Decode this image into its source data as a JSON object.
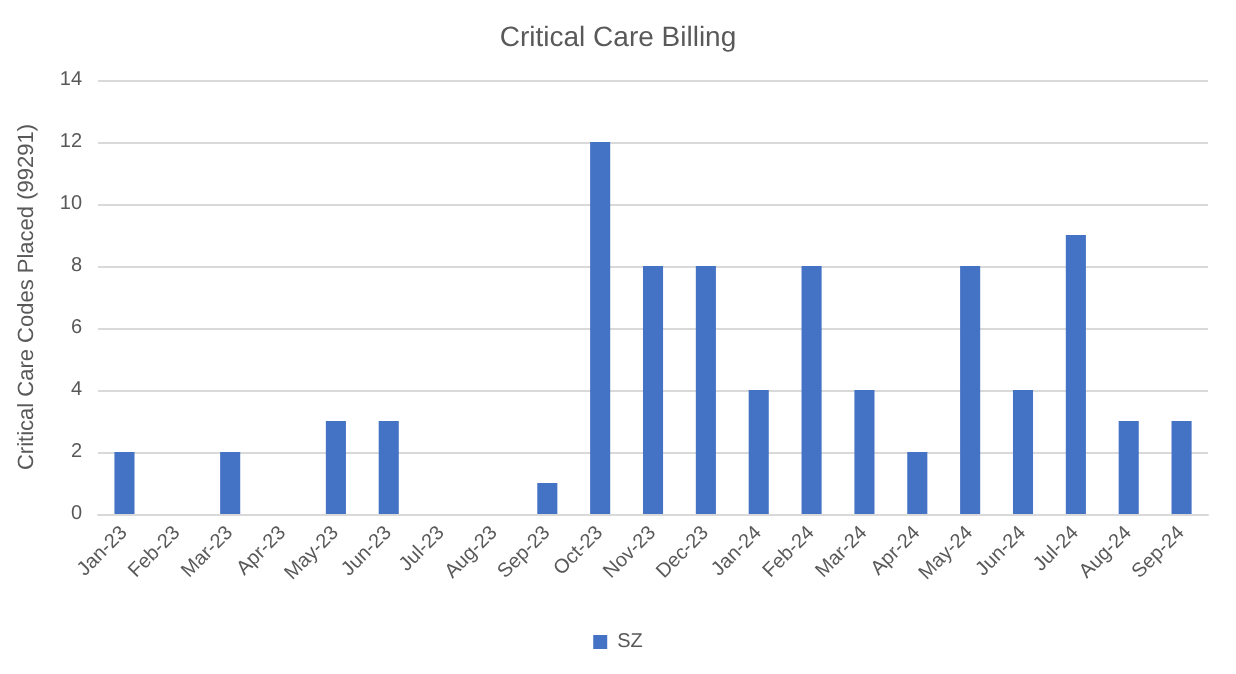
{
  "chart_data": {
    "type": "bar",
    "title": "Critical Care Billing",
    "ylabel": "Critical Care Codes Placed (99291)",
    "categories": [
      "Jan-23",
      "Feb-23",
      "Mar-23",
      "Apr-23",
      "May-23",
      "Jun-23",
      "Jul-23",
      "Aug-23",
      "Sep-23",
      "Oct-23",
      "Nov-23",
      "Dec-23",
      "Jan-24",
      "Feb-24",
      "Mar-24",
      "Apr-24",
      "May-24",
      "Jun-24",
      "Jul-24",
      "Aug-24",
      "Sep-24"
    ],
    "series": [
      {
        "name": "SZ",
        "color": "#4472c4",
        "values": [
          2,
          0,
          2,
          0,
          3,
          3,
          0,
          0,
          1,
          12,
          8,
          8,
          4,
          8,
          4,
          2,
          8,
          4,
          9,
          3,
          3
        ]
      }
    ],
    "ylim": [
      0,
      14
    ],
    "yticks": [
      0,
      2,
      4,
      6,
      8,
      10,
      12,
      14
    ],
    "grid": "y",
    "legend": "bottom"
  }
}
